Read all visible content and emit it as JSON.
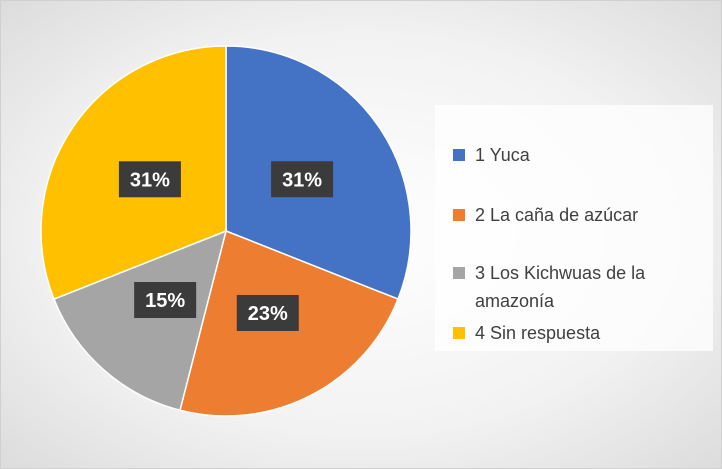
{
  "chart_data": {
    "type": "pie",
    "categories": [
      "1 Yuca",
      "2 La caña de azúcar",
      "3 Los Kichwuas de la amazonía",
      "4 Sin respuesta"
    ],
    "values": [
      31,
      23,
      15,
      31
    ],
    "value_labels": [
      "31%",
      "23%",
      "15%",
      "31%"
    ],
    "colors": [
      "#4472c4",
      "#ed7d31",
      "#a5a5a5",
      "#ffc000"
    ],
    "legend": "right"
  }
}
